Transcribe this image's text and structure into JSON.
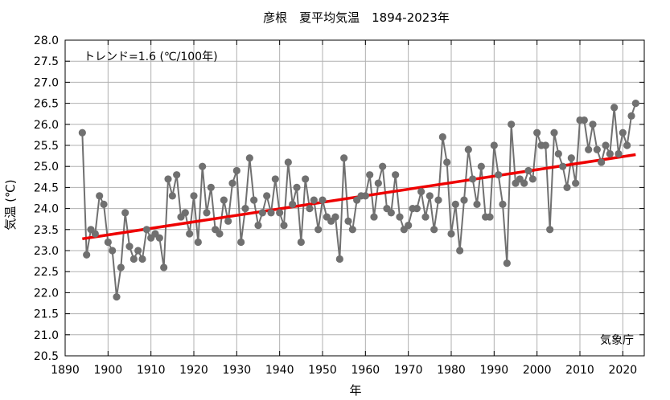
{
  "chart_data": {
    "type": "line",
    "title": "彦根　夏平均気温　1894-2023年",
    "xlabel": "年",
    "ylabel": "気温 (℃)",
    "xlim": [
      1890,
      2025
    ],
    "ylim": [
      20.5,
      28.0
    ],
    "xticks": [
      1890,
      1900,
      1910,
      1920,
      1930,
      1940,
      1950,
      1960,
      1970,
      1980,
      1990,
      2000,
      2010,
      2020
    ],
    "yticks": [
      20.5,
      21.0,
      21.5,
      22.0,
      22.5,
      23.0,
      23.5,
      24.0,
      24.5,
      25.0,
      25.5,
      26.0,
      26.5,
      27.0,
      27.5,
      28.0
    ],
    "annotation_trend": "トレンド=1.6 (℃/100年)",
    "annotation_source": "気象庁",
    "colors": {
      "series": "#707070",
      "trend": "#ee0000",
      "frame": "#000000"
    },
    "series": [
      {
        "x": [
          1894,
          1895,
          1896,
          1897,
          1898,
          1899,
          1900,
          1901,
          1902,
          1903,
          1904,
          1905,
          1906,
          1907,
          1908,
          1909,
          1910,
          1911,
          1912,
          1913,
          1914,
          1915,
          1916,
          1917,
          1918,
          1919,
          1920,
          1921,
          1922,
          1923,
          1924,
          1925,
          1926,
          1927,
          1928,
          1929,
          1930,
          1931,
          1932,
          1933,
          1934,
          1935,
          1936,
          1937,
          1938,
          1939,
          1940,
          1941,
          1942,
          1943,
          1944,
          1945,
          1946,
          1947,
          1948,
          1949,
          1950,
          1951,
          1952,
          1953,
          1954,
          1955,
          1956,
          1957,
          1958,
          1959,
          1960,
          1961,
          1962,
          1963,
          1964,
          1965,
          1966,
          1967,
          1968,
          1969,
          1970,
          1971,
          1972,
          1973,
          1974,
          1975,
          1976,
          1977,
          1978,
          1979,
          1980,
          1981,
          1982,
          1983,
          1984,
          1985,
          1986,
          1987,
          1988,
          1989,
          1990,
          1991,
          1992,
          1993,
          1994,
          1995,
          1996,
          1997,
          1998,
          1999,
          2000,
          2001,
          2002,
          2003,
          2004,
          2005,
          2006,
          2007,
          2008,
          2009,
          2010,
          2011,
          2012,
          2013,
          2014,
          2015,
          2016,
          2017,
          2018,
          2019,
          2020,
          2021,
          2022,
          2023
        ],
        "values": [
          25.8,
          22.9,
          23.5,
          23.4,
          24.3,
          24.1,
          23.2,
          23.0,
          21.9,
          22.6,
          23.9,
          23.1,
          22.8,
          23.0,
          22.8,
          23.5,
          23.3,
          23.4,
          23.3,
          22.6,
          24.7,
          24.3,
          24.8,
          23.8,
          23.9,
          23.4,
          24.3,
          23.2,
          25.0,
          23.9,
          24.5,
          23.5,
          23.4,
          24.2,
          23.7,
          24.6,
          24.9,
          23.2,
          24.0,
          25.2,
          24.2,
          23.6,
          23.9,
          24.3,
          23.9,
          24.7,
          23.9,
          23.6,
          25.1,
          24.1,
          24.5,
          23.2,
          24.7,
          24.0,
          24.2,
          23.5,
          24.2,
          23.8,
          23.7,
          23.8,
          22.8,
          25.2,
          23.7,
          23.5,
          24.2,
          24.3,
          24.3,
          24.8,
          23.8,
          24.6,
          25.0,
          24.0,
          23.9,
          24.8,
          23.8,
          23.5,
          23.6,
          24.0,
          24.0,
          24.4,
          23.8,
          24.3,
          23.5,
          24.2,
          25.7,
          25.1,
          23.4,
          24.1,
          23.0,
          24.2,
          25.4,
          24.7,
          24.1,
          25.0,
          23.8,
          23.8,
          25.5,
          24.8,
          24.1,
          22.7,
          26.0,
          24.6,
          24.7,
          24.6,
          24.9,
          24.7,
          25.8,
          25.5,
          25.5,
          23.5,
          25.8,
          25.3,
          25.0,
          24.5,
          25.2,
          24.6,
          26.1,
          26.1,
          25.4,
          26.0,
          25.4,
          25.1,
          25.5,
          25.3,
          26.4,
          25.3,
          25.8,
          25.5,
          26.2,
          26.5
        ]
      }
    ],
    "trend": {
      "x": [
        1894,
        2023
      ],
      "y": [
        23.28,
        25.28
      ]
    }
  }
}
